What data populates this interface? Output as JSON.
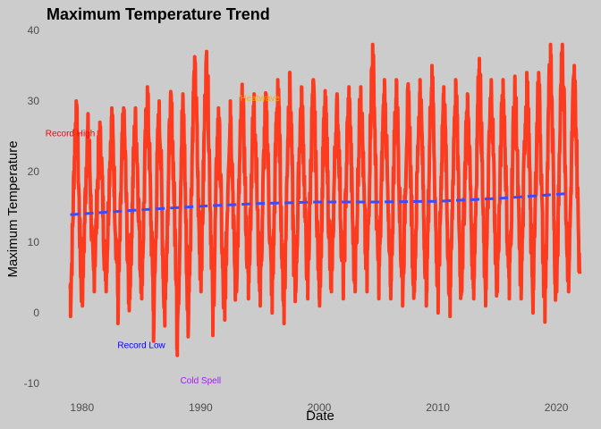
{
  "chart_data": {
    "type": "line",
    "title": "Maximum Temperature Trend",
    "xlabel": "Date",
    "ylabel": "Maximum Temperature",
    "xlim": [
      1977.0,
      2021.8
    ],
    "ylim": [
      -12,
      41
    ],
    "x_ticks": [
      1980,
      1990,
      2000,
      2010,
      2020
    ],
    "y_ticks": [
      -10,
      0,
      10,
      20,
      30,
      40
    ],
    "grid": false,
    "legend": "none",
    "series": [
      {
        "color": "#ff3b1f",
        "style": "solid",
        "seasonal": {
          "start_year": 1979,
          "end_year": 2021,
          "annual_peaks": [
            30,
            28,
            27,
            29,
            29,
            29,
            32,
            30,
            31,
            31,
            36,
            37,
            29,
            30,
            32,
            31,
            31,
            33,
            34,
            32,
            33,
            31,
            31,
            32,
            32,
            38,
            33,
            33,
            32,
            33,
            35,
            32,
            33,
            31,
            36,
            33,
            33,
            33,
            34,
            34,
            38,
            38,
            35
          ],
          "annual_troughs": [
            -0.5,
            1,
            3,
            3,
            -1.5,
            2,
            2,
            -4,
            2,
            -6,
            3,
            3,
            -3.2,
            -1,
            3,
            2,
            1,
            0,
            -1.5,
            3,
            2,
            1,
            3,
            2,
            3,
            3,
            2,
            2,
            1,
            3,
            1,
            0,
            -0.5,
            3,
            2,
            1,
            3,
            2,
            2,
            0,
            -1.3,
            3,
            3
          ],
          "points_per_year": 40
        }
      },
      {
        "color": "#3b4cff",
        "style": "dashed",
        "x": [
          1979,
          1985,
          1990,
          1995,
          2000,
          2005,
          2010,
          2015,
          2021
        ],
        "y": [
          13.9,
          14.6,
          15.1,
          15.5,
          15.7,
          15.7,
          15.8,
          16.2,
          16.9
        ]
      }
    ],
    "annotations": [
      {
        "text": "Record High",
        "x": 1979.0,
        "y": 25.0,
        "color": "#ff0000"
      },
      {
        "text": "Heatwave",
        "x": 1995.0,
        "y": 30.0,
        "color": "#ffa500"
      },
      {
        "text": "Record Low",
        "x": 1985.0,
        "y": -5.0,
        "color": "#0000ff"
      },
      {
        "text": "Cold Spell",
        "x": 1990.0,
        "y": -10.0,
        "color": "#a020f0"
      }
    ]
  }
}
